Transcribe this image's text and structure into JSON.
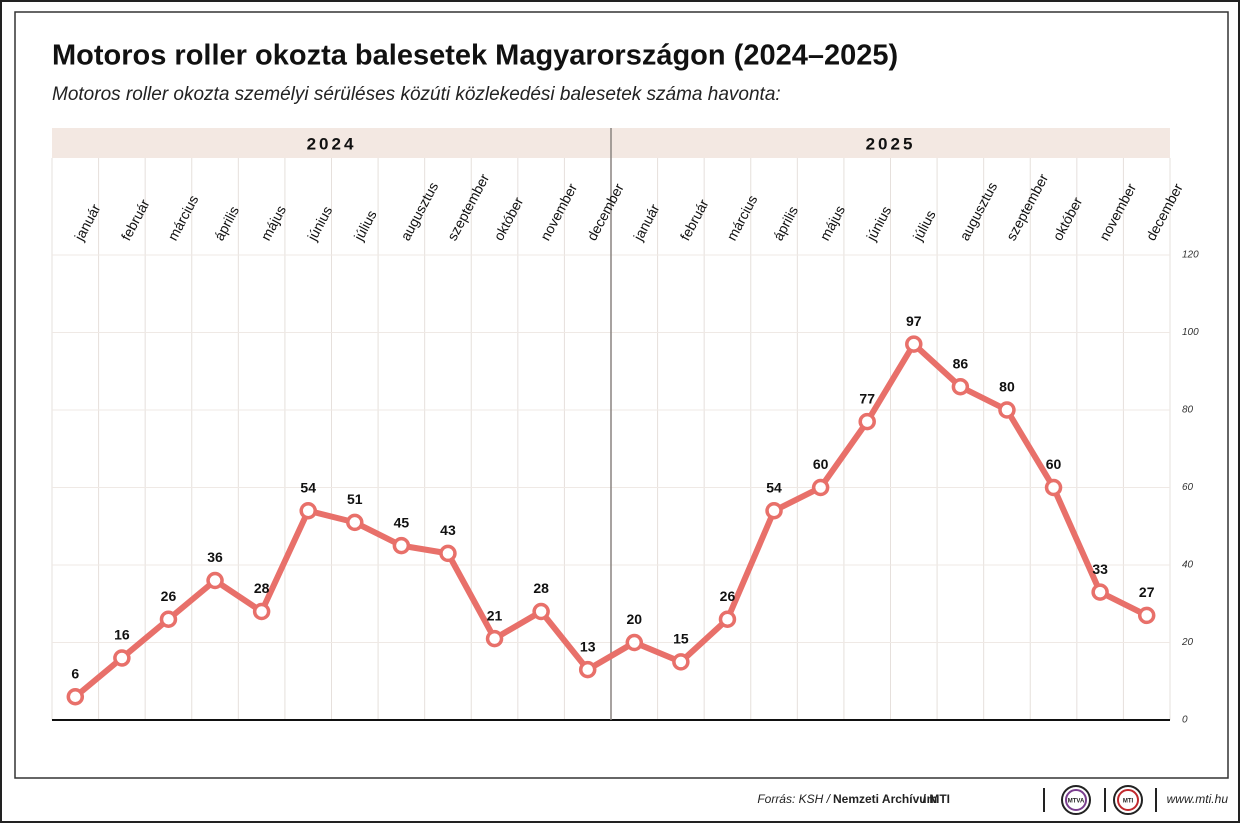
{
  "chart_data": {
    "type": "line",
    "title": "Motoros roller okozta balesetek Magyarországon (2024–2025)",
    "subtitle": "Motoros roller okozta személyi sérüléses közúti közlekedési balesetek száma havonta:",
    "groups": [
      "2024",
      "2025"
    ],
    "categories": [
      "január",
      "február",
      "március",
      "április",
      "május",
      "június",
      "július",
      "augusztus",
      "szeptember",
      "október",
      "november",
      "december",
      "január",
      "február",
      "március",
      "április",
      "május",
      "június",
      "július",
      "augusztus",
      "szeptember",
      "október",
      "november",
      "december"
    ],
    "values": [
      6,
      16,
      26,
      36,
      28,
      54,
      51,
      45,
      43,
      21,
      28,
      13,
      20,
      15,
      26,
      54,
      60,
      77,
      97,
      86,
      80,
      60,
      33,
      27
    ],
    "color": "#e8706a",
    "ylim": [
      0,
      120
    ],
    "yticks": [
      0,
      20,
      40,
      60,
      80,
      100,
      120
    ],
    "grid": true
  },
  "footer": {
    "source": "Forrás: KSH /",
    "archive": "Nemzeti Archívum",
    "agency": "/ MTI",
    "logos": [
      "MTVA",
      "MTI"
    ],
    "url": "www.mti.hu"
  }
}
